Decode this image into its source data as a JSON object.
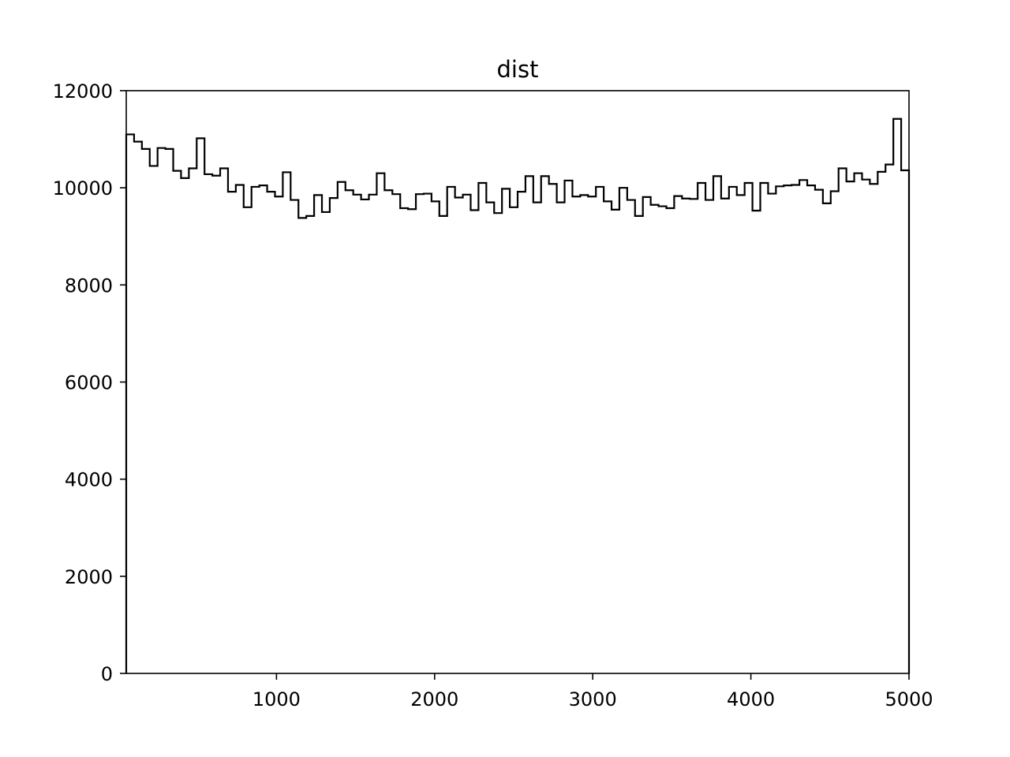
{
  "chart_data": {
    "type": "histogram",
    "title": "dist",
    "xlabel": "",
    "ylabel": "",
    "xlim": [
      50,
      5000
    ],
    "ylim": [
      0,
      12000
    ],
    "x_ticks": [
      1000,
      2000,
      3000,
      4000,
      5000
    ],
    "x_tick_labels": [
      "1000",
      "2000",
      "3000",
      "4000",
      "5000"
    ],
    "y_ticks": [
      0,
      2000,
      4000,
      6000,
      8000,
      10000,
      12000
    ],
    "y_tick_labels": [
      "0",
      "2000",
      "4000",
      "6000",
      "8000",
      "10000",
      "12000"
    ],
    "bin_start": 50,
    "bin_width": 49.5,
    "histtype": "step",
    "line_color": "#000000",
    "grid": false,
    "counts": [
      11100,
      10950,
      10800,
      10450,
      10820,
      10800,
      10350,
      10200,
      10400,
      11020,
      10280,
      10250,
      10400,
      9920,
      10060,
      9600,
      10020,
      10050,
      9920,
      9820,
      10320,
      9750,
      9380,
      9420,
      9850,
      9500,
      9790,
      10120,
      9950,
      9860,
      9760,
      9860,
      10300,
      9950,
      9870,
      9580,
      9560,
      9870,
      9880,
      9720,
      9420,
      10020,
      9800,
      9860,
      9540,
      10100,
      9700,
      9480,
      9980,
      9600,
      9920,
      10240,
      9700,
      10240,
      10080,
      9700,
      10150,
      9820,
      9850,
      9820,
      10020,
      9720,
      9550,
      10000,
      9750,
      9420,
      9810,
      9650,
      9620,
      9580,
      9830,
      9780,
      9770,
      10100,
      9750,
      10240,
      9780,
      10020,
      9850,
      10100,
      9530,
      10100,
      9880,
      10030,
      10050,
      10060,
      10160,
      10050,
      9960,
      9680,
      9930,
      10400,
      10130,
      10300,
      10170,
      10080,
      10330,
      10480,
      11420,
      10360
    ]
  }
}
